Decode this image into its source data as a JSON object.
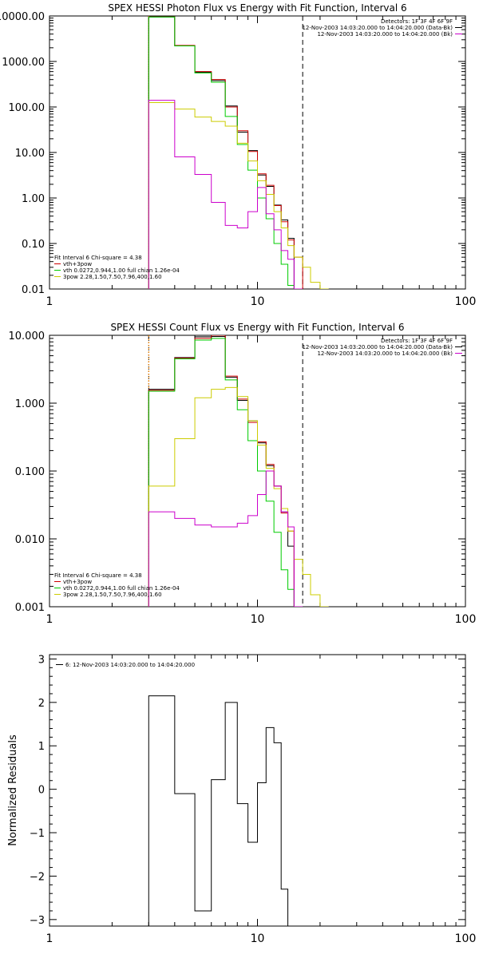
{
  "chart_data": [
    {
      "type": "line",
      "title": "SPEX HESSI Photon Flux vs Energy with Fit Function, Interval 6",
      "xscale": "log",
      "yscale": "log",
      "xlim": [
        1,
        100
      ],
      "ylim": [
        0.01,
        10000
      ],
      "x_ticks": [
        {
          "v": 1,
          "label": "1"
        },
        {
          "v": 10,
          "label": "10"
        },
        {
          "v": 100,
          "label": "100"
        }
      ],
      "y_ticks": [
        {
          "v": 10000,
          "label": "10000.00"
        },
        {
          "v": 1000,
          "label": "1000.00"
        },
        {
          "v": 100,
          "label": "100.00"
        },
        {
          "v": 10,
          "label": "10.00"
        },
        {
          "v": 1,
          "label": "1.00"
        },
        {
          "v": 0.1,
          "label": "0.10"
        },
        {
          "v": 0.01,
          "label": "0.01"
        }
      ],
      "right_notes": [
        {
          "text": "Detectors: 1F 3F 4F 6F 9F",
          "swatch": ""
        },
        {
          "text": "12-Nov-2003 14:03:20.000 to 14:04:20.000 (Data-Bk)",
          "swatch": "#000000"
        },
        {
          "text": "12-Nov-2003 14:03:20.000 to 14:04:20.000 (Bk)",
          "swatch": "#cc00cc"
        }
      ],
      "left_notes": [
        {
          "text": "Fit Interval 6   Chi-square = 4.38",
          "swatch": ""
        },
        {
          "text": "vth+3pow",
          "swatch": "#cc0000"
        },
        {
          "text": "vth 0.0272,0.944,1.00  full chian 1.26e-04",
          "swatch": "#00cc00"
        },
        {
          "text": "3pow 2.28,1.50,7.50,7.96,400,1.60",
          "swatch": "#cccc00"
        }
      ],
      "vlines": [
        {
          "x": 3.0,
          "color": "#000000",
          "dash": "1,2"
        },
        {
          "x": 3.0,
          "color": "#ff8800",
          "dash": "2,2"
        },
        {
          "x": 16.5,
          "color": "#000000",
          "dash": "6,4"
        }
      ],
      "edges": [
        3.0,
        4.0,
        5.0,
        6.0,
        7.0,
        8.0,
        9.0,
        10.0,
        11.0,
        12.0,
        13.0,
        14.0,
        15.0,
        16.5,
        18.0,
        20.0,
        22.0
      ],
      "series": [
        {
          "name": "",
          "color": "#000000",
          "values": [
            9500,
            2200,
            580,
            380,
            105,
            28,
            11,
            3.2,
            1.8,
            0.7,
            0.33,
            0.13,
            null,
            null,
            null,
            null
          ]
        },
        {
          "name": "vth+3pow",
          "color": "#cc0000",
          "values": [
            9600,
            2250,
            600,
            400,
            100,
            30,
            10.5,
            3.4,
            1.9,
            0.68,
            0.3,
            0.12,
            0.05,
            null,
            null,
            null
          ]
        },
        {
          "name": "vth 0.0272,0.944,1.00  full chian 1.26e-04",
          "color": "#00cc00",
          "values": [
            9500,
            2200,
            560,
            350,
            62,
            15,
            4.1,
            1.0,
            0.35,
            0.1,
            0.035,
            0.012,
            null,
            null,
            null,
            null
          ]
        },
        {
          "name": "3pow 2.28,1.50,7.50,7.96,400,1.60",
          "color": "#cccc00",
          "values": [
            125,
            90,
            60,
            48,
            38,
            16,
            6.5,
            2.4,
            1.2,
            0.5,
            0.22,
            0.09,
            0.05,
            0.03,
            0.014,
            0.01
          ]
        },
        {
          "name": "",
          "color": "#cc00cc",
          "values": [
            140,
            8,
            3.3,
            0.8,
            0.25,
            0.22,
            0.5,
            1.7,
            0.45,
            0.2,
            0.07,
            0.045,
            0.01,
            null,
            null,
            null
          ]
        }
      ]
    },
    {
      "type": "line",
      "title": "SPEX HESSI Count Flux vs Energy with Fit Function, Interval 6",
      "xscale": "log",
      "yscale": "log",
      "xlim": [
        1,
        100
      ],
      "ylim": [
        0.001,
        10
      ],
      "x_ticks": [
        {
          "v": 1,
          "label": "1"
        },
        {
          "v": 10,
          "label": "10"
        },
        {
          "v": 100,
          "label": "100"
        }
      ],
      "y_ticks": [
        {
          "v": 10,
          "label": "10.000"
        },
        {
          "v": 1,
          "label": "1.000"
        },
        {
          "v": 0.1,
          "label": "0.100"
        },
        {
          "v": 0.01,
          "label": "0.010"
        },
        {
          "v": 0.001,
          "label": "0.001"
        }
      ],
      "right_notes": [
        {
          "text": "Detectors: 1F 3F 4F 6F 9F",
          "swatch": ""
        },
        {
          "text": "12-Nov-2003 14:03:20.000 to 14:04:20.000 (Data-Bk)",
          "swatch": "#000000"
        },
        {
          "text": "12-Nov-2003 14:03:20.000 to 14:04:20.000 (Bk)",
          "swatch": "#cc00cc"
        }
      ],
      "left_notes": [
        {
          "text": "Fit Interval 6   Chi-square = 4.38",
          "swatch": ""
        },
        {
          "text": "vth+3pow",
          "swatch": "#cc0000"
        },
        {
          "text": "vth 0.0272,0.944,1.00  full chian 1.26e-04",
          "swatch": "#00cc00"
        },
        {
          "text": "3pow 2.28,1.50,7.50,7.96,400,1.60",
          "swatch": "#cccc00"
        }
      ],
      "vlines": [
        {
          "x": 3.0,
          "color": "#000000",
          "dash": "1,2"
        },
        {
          "x": 3.0,
          "color": "#ff8800",
          "dash": "2,2"
        },
        {
          "x": 16.5,
          "color": "#000000",
          "dash": "6,4"
        }
      ],
      "edges": [
        3.0,
        4.0,
        5.0,
        6.0,
        7.0,
        8.0,
        9.0,
        10.0,
        11.0,
        12.0,
        13.0,
        14.0,
        15.0,
        16.5,
        18.0,
        20.0,
        22.0
      ],
      "series": [
        {
          "name": "",
          "color": "#000000",
          "values": [
            1.6,
            4.7,
            9.5,
            9.6,
            2.4,
            1.1,
            0.55,
            0.26,
            0.12,
            0.06,
            0.025,
            0.0078,
            null,
            null,
            null,
            null
          ]
        },
        {
          "name": "vth+3pow",
          "color": "#cc0000",
          "values": [
            1.55,
            4.6,
            9.0,
            10.0,
            2.5,
            1.15,
            0.52,
            0.27,
            0.125,
            0.06,
            0.024,
            0.013,
            null,
            null,
            null,
            null
          ]
        },
        {
          "name": "vth 0.0272,0.944,1.00  full chian 1.26e-04",
          "color": "#00cc00",
          "values": [
            1.5,
            4.5,
            8.5,
            9.0,
            2.2,
            0.8,
            0.28,
            0.1,
            0.036,
            0.0125,
            0.0035,
            0.0018,
            null,
            null,
            null,
            null
          ]
        },
        {
          "name": "3pow 2.28,1.50,7.50,7.96,400,1.60",
          "color": "#cccc00",
          "values": [
            0.06,
            0.3,
            1.2,
            1.6,
            1.7,
            1.25,
            0.55,
            0.24,
            0.11,
            0.055,
            0.028,
            0.013,
            0.005,
            0.003,
            0.0015,
            0.001
          ]
        },
        {
          "name": "",
          "color": "#cc00cc",
          "values": [
            0.025,
            0.02,
            0.016,
            0.015,
            0.015,
            0.017,
            0.022,
            0.045,
            0.1,
            0.06,
            0.025,
            0.015,
            0.001,
            null,
            null,
            null
          ]
        }
      ]
    },
    {
      "type": "line",
      "title": "",
      "ylabel": "Normalized Residuals",
      "xscale": "log",
      "yscale": "linear",
      "xlim": [
        1,
        100
      ],
      "ylim": [
        -3.15,
        3.1
      ],
      "x_ticks": [
        {
          "v": 1,
          "label": "1"
        },
        {
          "v": 10,
          "label": "10"
        },
        {
          "v": 100,
          "label": "100"
        }
      ],
      "y_ticks": [
        {
          "v": 3,
          "label": "3"
        },
        {
          "v": 2,
          "label": "2"
        },
        {
          "v": 1,
          "label": "1"
        },
        {
          "v": 0,
          "label": "0"
        },
        {
          "v": -1,
          "label": "−1"
        },
        {
          "v": -2,
          "label": "−2"
        },
        {
          "v": -3,
          "label": "−3"
        }
      ],
      "legend": [
        {
          "text": "6: 12-Nov-2003 14:03:20.000 to 14:04:20.000",
          "swatch": "#000000"
        }
      ],
      "edges": [
        3.0,
        4.0,
        5.0,
        6.0,
        7.0,
        8.0,
        9.0,
        10.0,
        11.0,
        12.0,
        13.0,
        14.0,
        15.0,
        16.5
      ],
      "series": [
        {
          "name": "",
          "color": "#000000",
          "values": [
            2.15,
            -0.1,
            -2.8,
            0.22,
            2.0,
            -0.33,
            -1.22,
            0.15,
            1.42,
            1.07,
            -2.3,
            null,
            null
          ]
        }
      ]
    }
  ]
}
